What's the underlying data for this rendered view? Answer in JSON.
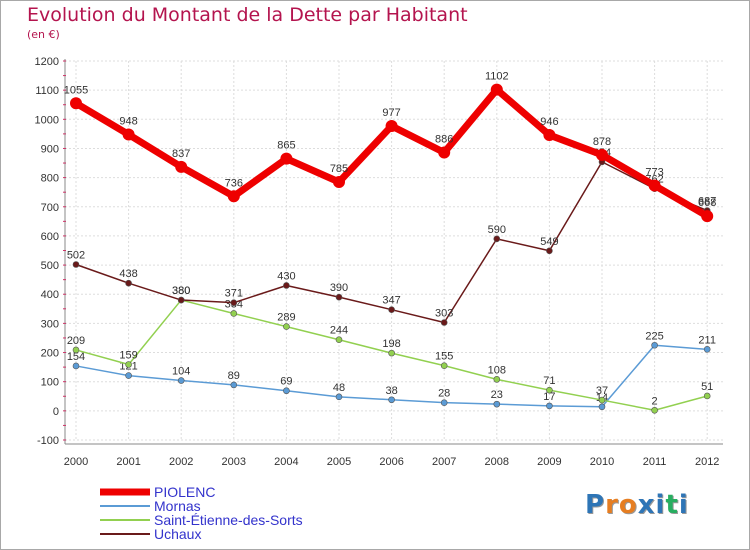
{
  "title": "Evolution du Montant de la Dette par Habitant",
  "subtitle": "(en €)",
  "logo_text": "Proxiti",
  "chart_data": {
    "type": "line",
    "x": [
      "2000",
      "2001",
      "2002",
      "2003",
      "2004",
      "2005",
      "2006",
      "2007",
      "2008",
      "2009",
      "2010",
      "2011",
      "2012"
    ],
    "ylim": [
      -100,
      1200
    ],
    "yticks": [
      -100,
      0,
      100,
      200,
      300,
      400,
      500,
      600,
      700,
      800,
      900,
      1000,
      1100,
      1200
    ],
    "grid": true,
    "legend": "bottom",
    "series": [
      {
        "name": "PIOLENC",
        "color": "#ee0000",
        "values": [
          1055,
          948,
          837,
          736,
          865,
          785,
          977,
          886,
          1102,
          946,
          878,
          773,
          668
        ]
      },
      {
        "name": "Mornas",
        "color": "#5b9bd5",
        "values": [
          154,
          121,
          104,
          89,
          69,
          48,
          38,
          28,
          23,
          17,
          14,
          225,
          211
        ]
      },
      {
        "name": "Saint-Étienne-des-Sorts",
        "color": "#92d050",
        "values": [
          209,
          159,
          380,
          334,
          289,
          244,
          198,
          155,
          108,
          71,
          37,
          2,
          51
        ]
      },
      {
        "name": "Uchaux",
        "color": "#6a1a1a",
        "values": [
          502,
          438,
          380,
          371,
          430,
          390,
          347,
          303,
          590,
          549,
          854,
          762,
          687
        ]
      }
    ]
  }
}
